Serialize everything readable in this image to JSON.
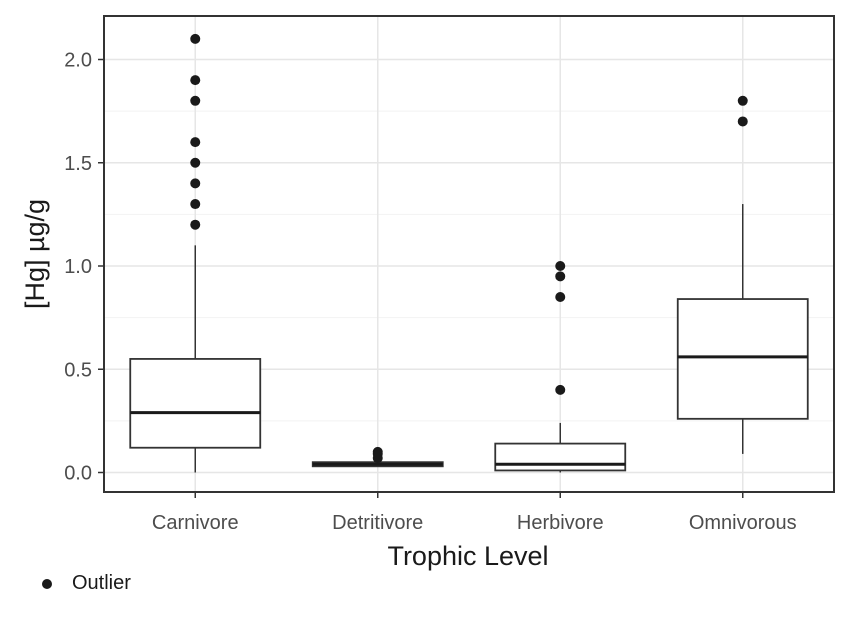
{
  "chart_data": {
    "type": "boxplot",
    "xlabel": "Trophic Level",
    "ylabel": "[Hg] µg/g",
    "ylim": [
      -0.1,
      2.2
    ],
    "yticks": [
      0.0,
      0.5,
      1.0,
      1.5,
      2.0
    ],
    "ytick_labels": [
      "0.0",
      "0.5",
      "1.0",
      "1.5",
      "2.0"
    ],
    "grid": true,
    "categories": [
      "Carnivore",
      "Detritivore",
      "Herbivore",
      "Omnivorous"
    ],
    "boxes": [
      {
        "category": "Carnivore",
        "whisker_low": 0.0,
        "q1": 0.12,
        "median": 0.29,
        "q3": 0.55,
        "whisker_high": 1.1,
        "outliers": [
          1.2,
          1.3,
          1.4,
          1.5,
          1.6,
          1.8,
          1.9,
          2.1
        ]
      },
      {
        "category": "Detritivore",
        "whisker_low": 0.03,
        "q1": 0.03,
        "median": 0.04,
        "q3": 0.05,
        "whisker_high": 0.06,
        "outliers": [
          0.07,
          0.09,
          0.1
        ]
      },
      {
        "category": "Herbivore",
        "whisker_low": 0.0,
        "q1": 0.01,
        "median": 0.04,
        "q3": 0.14,
        "whisker_high": 0.24,
        "outliers": [
          0.4,
          0.85,
          0.95,
          1.0
        ]
      },
      {
        "category": "Omnivorous",
        "whisker_low": 0.09,
        "q1": 0.26,
        "median": 0.56,
        "q3": 0.84,
        "whisker_high": 1.3,
        "outliers": [
          1.7,
          1.8
        ]
      }
    ]
  },
  "legend": {
    "label": "Outlier"
  }
}
